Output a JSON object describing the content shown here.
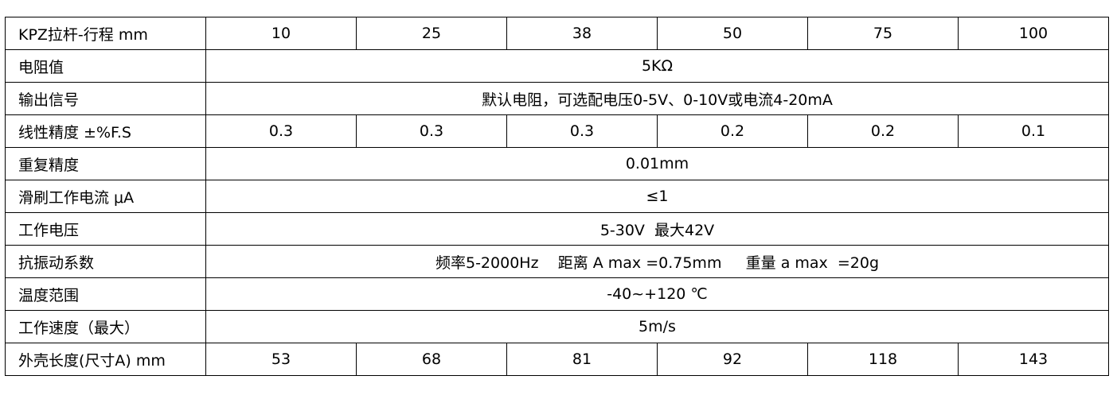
{
  "rows": [
    {
      "label": "KPZ拉杆-行程 mm",
      "values": [
        "10",
        "25",
        "38",
        "50",
        "75",
        "100"
      ]
    },
    {
      "label": "电阻值",
      "value": "5KΩ"
    },
    {
      "label": "输出信号",
      "value": "默认电阻，可选配电压0-5V、0-10V或电流4-20mA"
    },
    {
      "label": "线性精度 ±%F.S",
      "values": [
        "0.3",
        "0.3",
        "0.3",
        "0.2",
        "0.2",
        "0.1"
      ]
    },
    {
      "label": "重复精度",
      "value": "0.01mm"
    },
    {
      "label": "滑刷工作电流 μA",
      "value": "≤1"
    },
    {
      "label": "工作电压",
      "value": "5-30V  最大42V"
    },
    {
      "label": "抗振动系数",
      "value": "频率5-2000Hz    距离 A max =0.75mm     重量 a max  =20g"
    },
    {
      "label": "温度范围",
      "value": "-40~+120 ℃"
    },
    {
      "label": "工作速度（最大）",
      "value": "5m/s"
    },
    {
      "label": "外壳长度(尺寸A) mm",
      "values": [
        "53",
        "68",
        "81",
        "92",
        "118",
        "143"
      ]
    }
  ]
}
